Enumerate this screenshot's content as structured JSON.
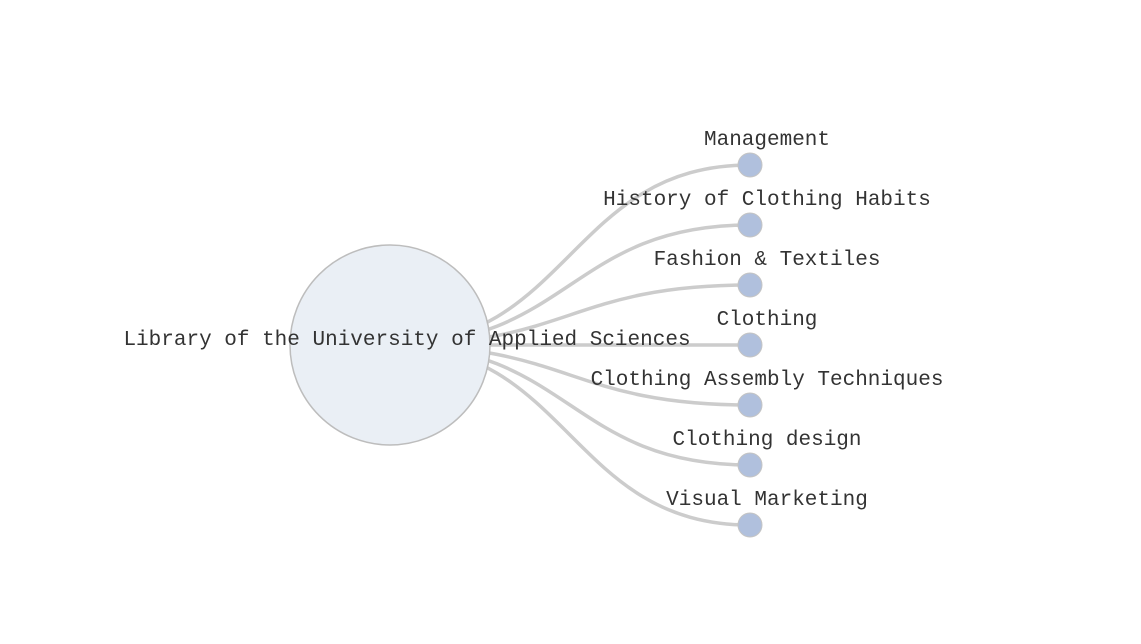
{
  "diagram": {
    "root": {
      "label": "Library of the University of Applied Sciences"
    },
    "children": [
      {
        "label": "Management"
      },
      {
        "label": "History of Clothing Habits"
      },
      {
        "label": "Fashion & Textiles"
      },
      {
        "label": "Clothing"
      },
      {
        "label": "Clothing Assembly Techniques"
      },
      {
        "label": "Clothing design"
      },
      {
        "label": "Visual Marketing"
      }
    ],
    "colors": {
      "root_fill": "#eaeff5",
      "root_stroke": "#bdbdbd",
      "leaf_fill": "#b0c0dd",
      "link": "#cccccc",
      "text": "#333333"
    }
  }
}
